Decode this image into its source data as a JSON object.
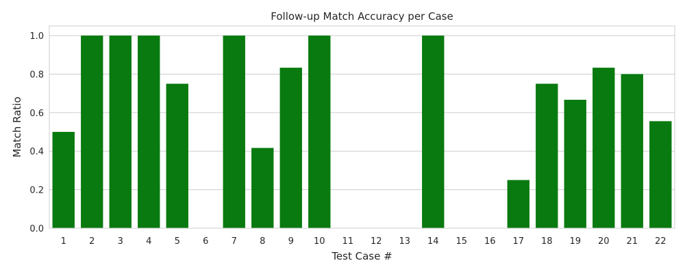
{
  "chart_data": {
    "type": "bar",
    "title": "Follow-up Match Accuracy per Case",
    "xlabel": "Test Case #",
    "ylabel": "Match Ratio",
    "ylim": [
      0,
      1.05
    ],
    "yticks": [
      "0.0",
      "0.2",
      "0.4",
      "0.6",
      "0.8",
      "1.0"
    ],
    "categories": [
      "1",
      "2",
      "3",
      "4",
      "5",
      "6",
      "7",
      "8",
      "9",
      "10",
      "11",
      "12",
      "13",
      "14",
      "15",
      "16",
      "17",
      "18",
      "19",
      "20",
      "21",
      "22"
    ],
    "values": [
      0.5,
      1.0,
      1.0,
      1.0,
      0.75,
      0.0,
      1.0,
      0.4167,
      0.8333,
      1.0,
      0.0,
      0.0,
      0.0,
      1.0,
      0.0,
      0.0,
      0.25,
      0.75,
      0.6667,
      0.8333,
      0.8,
      0.5556
    ],
    "bar_color": "#087a0f",
    "grid": true,
    "legend": "none"
  }
}
